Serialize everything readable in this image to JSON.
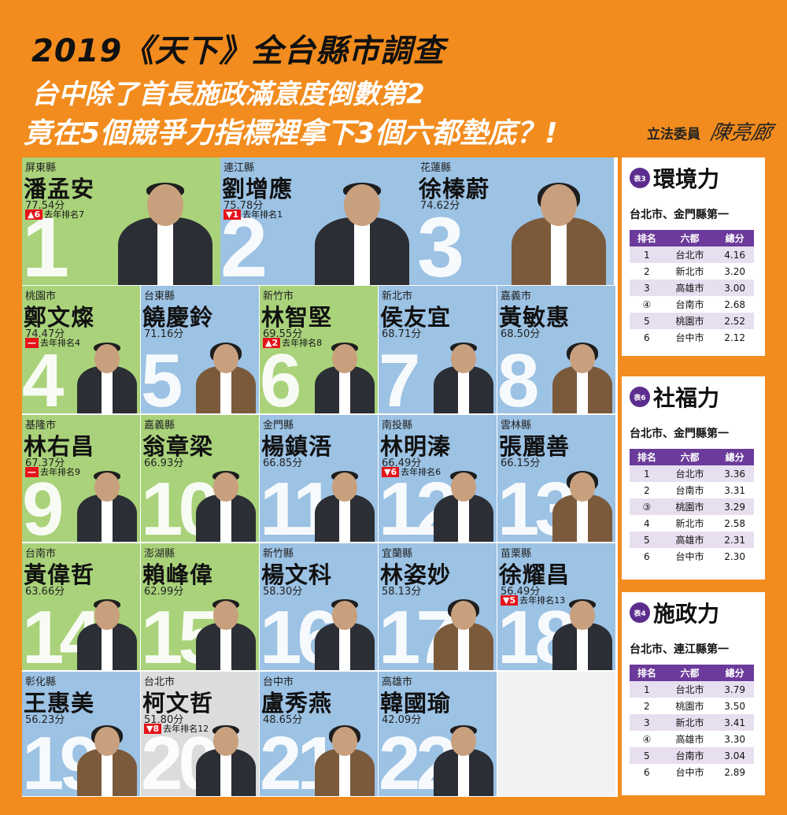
{
  "header": {
    "title": "2019《天下》全台縣市調查",
    "line2": "台中除了首長施政滿意度倒數第2",
    "line3": "竟在5個競爭力指標裡拿下3個六都墊底？!",
    "legislator_label": "立法委員",
    "signature": "陳亮廊"
  },
  "rankings": [
    {
      "rank": "1",
      "county": "屏東縣",
      "name": "潘孟安",
      "score": "77.54分",
      "change_tag": "▲6",
      "change_text": "去年排名7",
      "bg": "#a9d27a"
    },
    {
      "rank": "2",
      "county": "連江縣",
      "name": "劉增應",
      "score": "75.78分",
      "change_tag": "▼1",
      "change_text": "去年排名1",
      "bg": "#9cc2e4"
    },
    {
      "rank": "3",
      "county": "花蓮縣",
      "name": "徐榛蔚",
      "score": "74.62分",
      "change_tag": "",
      "change_text": "",
      "bg": "#9cc2e4"
    },
    {
      "rank": "4",
      "county": "桃園市",
      "name": "鄭文燦",
      "score": "74.47分",
      "change_tag": "—",
      "change_text": "去年排名4",
      "bg": "#a9d27a"
    },
    {
      "rank": "5",
      "county": "台東縣",
      "name": "饒慶鈴",
      "score": "71.16分",
      "change_tag": "",
      "change_text": "",
      "bg": "#9cc2e4"
    },
    {
      "rank": "6",
      "county": "新竹市",
      "name": "林智堅",
      "score": "69.55分",
      "change_tag": "▲2",
      "change_text": "去年排名8",
      "bg": "#a9d27a"
    },
    {
      "rank": "7",
      "county": "新北市",
      "name": "侯友宜",
      "score": "68.71分",
      "change_tag": "",
      "change_text": "",
      "bg": "#9cc2e4"
    },
    {
      "rank": "8",
      "county": "嘉義市",
      "name": "黃敏惠",
      "score": "68.50分",
      "change_tag": "",
      "change_text": "",
      "bg": "#9cc2e4"
    },
    {
      "rank": "9",
      "county": "基隆市",
      "name": "林右昌",
      "score": "67.37分",
      "change_tag": "—",
      "change_text": "去年排名9",
      "bg": "#a9d27a"
    },
    {
      "rank": "10",
      "county": "嘉義縣",
      "name": "翁章梁",
      "score": "66.93分",
      "change_tag": "",
      "change_text": "",
      "bg": "#a9d27a"
    },
    {
      "rank": "11",
      "county": "金門縣",
      "name": "楊鎮浯",
      "score": "66.85分",
      "change_tag": "",
      "change_text": "",
      "bg": "#9cc2e4"
    },
    {
      "rank": "12",
      "county": "南投縣",
      "name": "林明溱",
      "score": "66.49分",
      "change_tag": "▼6",
      "change_text": "去年排名6",
      "bg": "#9cc2e4"
    },
    {
      "rank": "13",
      "county": "雲林縣",
      "name": "張麗善",
      "score": "66.15分",
      "change_tag": "",
      "change_text": "",
      "bg": "#9cc2e4"
    },
    {
      "rank": "14",
      "county": "台南市",
      "name": "黃偉哲",
      "score": "63.66分",
      "change_tag": "",
      "change_text": "",
      "bg": "#a9d27a"
    },
    {
      "rank": "15",
      "county": "澎湖縣",
      "name": "賴峰偉",
      "score": "62.99分",
      "change_tag": "",
      "change_text": "",
      "bg": "#a9d27a"
    },
    {
      "rank": "16",
      "county": "新竹縣",
      "name": "楊文科",
      "score": "58.30分",
      "change_tag": "",
      "change_text": "",
      "bg": "#9cc2e4"
    },
    {
      "rank": "17",
      "county": "宜蘭縣",
      "name": "林姿妙",
      "score": "58.13分",
      "change_tag": "",
      "change_text": "",
      "bg": "#9cc2e4"
    },
    {
      "rank": "18",
      "county": "苗栗縣",
      "name": "徐耀昌",
      "score": "56.49分",
      "change_tag": "▼5",
      "change_text": "去年排名13",
      "bg": "#9cc2e4"
    },
    {
      "rank": "19",
      "county": "彰化縣",
      "name": "王惠美",
      "score": "56.23分",
      "change_tag": "",
      "change_text": "",
      "bg": "#9cc2e4"
    },
    {
      "rank": "20",
      "county": "台北市",
      "name": "柯文哲",
      "score": "51.80分",
      "change_tag": "▼8",
      "change_text": "去年排名12",
      "bg": "#dcdcdc"
    },
    {
      "rank": "21",
      "county": "台中市",
      "name": "盧秀燕",
      "score": "48.65分",
      "change_tag": "",
      "change_text": "",
      "bg": "#9cc2e4"
    },
    {
      "rank": "22",
      "county": "高雄市",
      "name": "韓國瑜",
      "score": "42.09分",
      "change_tag": "",
      "change_text": "",
      "bg": "#9cc2e4"
    }
  ],
  "panels": [
    {
      "badge": "表3",
      "title": "環境力",
      "subtitle": "台北市、金門縣第一",
      "headers": [
        "排名",
        "六都",
        "總分"
      ],
      "rows": [
        [
          "1",
          "台北市",
          "4.16"
        ],
        [
          "2",
          "新北市",
          "3.20"
        ],
        [
          "3",
          "高雄市",
          "3.00"
        ],
        [
          "④",
          "台南市",
          "2.68"
        ],
        [
          "5",
          "桃園市",
          "2.52"
        ],
        [
          "6",
          "台中市",
          "2.12"
        ]
      ]
    },
    {
      "badge": "表6",
      "title": "社福力",
      "subtitle": "台北市、金門縣第一",
      "headers": [
        "排名",
        "六都",
        "總分"
      ],
      "rows": [
        [
          "1",
          "台北市",
          "3.36"
        ],
        [
          "2",
          "台南市",
          "3.31"
        ],
        [
          "③",
          "桃園市",
          "3.29"
        ],
        [
          "4",
          "新北市",
          "2.58"
        ],
        [
          "5",
          "高雄市",
          "2.31"
        ],
        [
          "6",
          "台中市",
          "2.30"
        ]
      ]
    },
    {
      "badge": "表4",
      "title": "施政力",
      "subtitle": "台北市、連江縣第一",
      "headers": [
        "排名",
        "六都",
        "總分"
      ],
      "rows": [
        [
          "1",
          "台北市",
          "3.79"
        ],
        [
          "2",
          "桃園市",
          "3.50"
        ],
        [
          "3",
          "新北市",
          "3.41"
        ],
        [
          "④",
          "高雄市",
          "3.30"
        ],
        [
          "5",
          "台南市",
          "3.04"
        ],
        [
          "6",
          "台中市",
          "2.89"
        ]
      ]
    }
  ]
}
